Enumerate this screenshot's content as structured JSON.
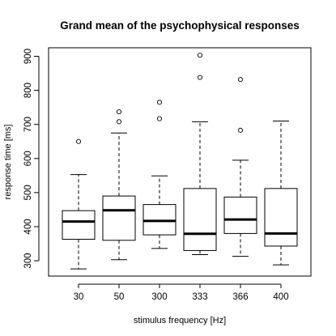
{
  "chart_data": {
    "type": "boxplot",
    "title": "Grand mean of the psychophysical responses",
    "xlabel": "stimulus frequency [Hz]",
    "ylabel": "response time [ms]",
    "ylim": [
      255,
      925
    ],
    "yticks": [
      300,
      400,
      500,
      600,
      700,
      800,
      900
    ],
    "categories": [
      "30",
      "50",
      "300",
      "333",
      "366",
      "400"
    ],
    "boxes": [
      {
        "category": "30",
        "whisker_low": 276,
        "q1": 363,
        "median": 415,
        "q3": 447,
        "whisker_high": 553,
        "outliers": [
          650
        ]
      },
      {
        "category": "50",
        "whisker_low": 303,
        "q1": 360,
        "median": 448,
        "q3": 490,
        "whisker_high": 675,
        "outliers": [
          708,
          737
        ]
      },
      {
        "category": "300",
        "whisker_low": 336,
        "q1": 376,
        "median": 417,
        "q3": 465,
        "whisker_high": 549,
        "outliers": [
          717,
          765
        ]
      },
      {
        "category": "333",
        "whisker_low": 318,
        "q1": 330,
        "median": 379,
        "q3": 512,
        "whisker_high": 708,
        "outliers": [
          838,
          903
        ]
      },
      {
        "category": "366",
        "whisker_low": 313,
        "q1": 380,
        "median": 421,
        "q3": 487,
        "whisker_high": 595,
        "outliers": [
          683,
          832
        ]
      },
      {
        "category": "400",
        "whisker_low": 288,
        "q1": 343,
        "median": 380,
        "q3": 512,
        "whisker_high": 710,
        "outliers": []
      }
    ],
    "grid": false,
    "legend": "none"
  }
}
